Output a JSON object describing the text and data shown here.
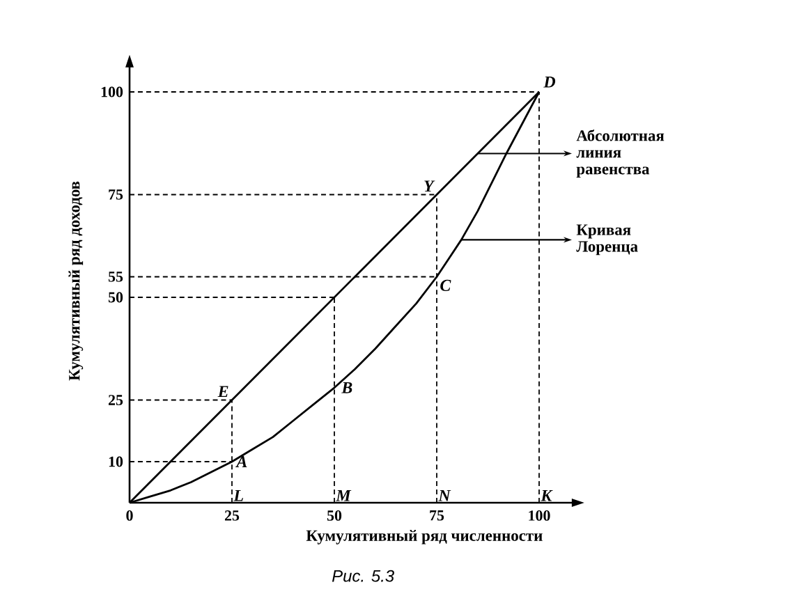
{
  "chart_data": {
    "type": "line",
    "xlabel": "Кумулятивный ряд численности",
    "ylabel": "Кумулятивный ряд доходов",
    "xlim": [
      0,
      110
    ],
    "ylim": [
      0,
      108
    ],
    "xticks": [
      {
        "value": 0,
        "label": "0"
      },
      25,
      50,
      75,
      100
    ],
    "yticks": [
      10,
      25,
      50,
      55,
      75,
      100
    ],
    "marker": "none",
    "series": [
      {
        "color": "#000000",
        "x": [
          0,
          100
        ],
        "values": [
          0,
          100
        ]
      },
      {
        "color": "#000000",
        "x": [
          0,
          5,
          10,
          15,
          20,
          25,
          30,
          35,
          40,
          45,
          50,
          55,
          60,
          65,
          70,
          75,
          78,
          81,
          85,
          88,
          92,
          96,
          100
        ],
        "values": [
          0,
          1.5,
          3,
          5,
          7.5,
          10,
          13,
          16,
          20,
          24,
          28,
          32.5,
          37.5,
          43,
          48.5,
          55,
          59.5,
          64,
          71,
          77,
          85,
          92.5,
          100
        ]
      },
      {
        "color": "#000000",
        "line_style": "dashed",
        "x": [
          0,
          25
        ],
        "values": [
          10,
          10
        ]
      },
      {
        "color": "#000000",
        "line_style": "dashed",
        "x": [
          0,
          25
        ],
        "values": [
          25,
          25
        ]
      },
      {
        "color": "#000000",
        "line_style": "dashed",
        "x": [
          0,
          50
        ],
        "values": [
          50,
          50
        ]
      },
      {
        "color": "#000000",
        "line_style": "dashed",
        "x": [
          0,
          75
        ],
        "values": [
          55,
          55
        ]
      },
      {
        "color": "#000000",
        "line_style": "dashed",
        "x": [
          0,
          75
        ],
        "values": [
          75,
          75
        ]
      },
      {
        "color": "#000000",
        "line_style": "dashed",
        "x": [
          0,
          100
        ],
        "values": [
          100,
          100
        ]
      },
      {
        "color": "#000000",
        "line_style": "dashed",
        "x": [
          25,
          25
        ],
        "values": [
          0,
          25
        ]
      },
      {
        "color": "#000000",
        "line_style": "dashed",
        "x": [
          50,
          50
        ],
        "values": [
          0,
          50
        ]
      },
      {
        "color": "#000000",
        "line_style": "dashed",
        "x": [
          75,
          75
        ],
        "values": [
          0,
          75
        ]
      },
      {
        "color": "#000000",
        "line_style": "dashed",
        "x": [
          100,
          100
        ],
        "values": [
          0,
          100
        ]
      }
    ],
    "annotations": [
      {
        "text": "E",
        "x": 25,
        "y": 25
      },
      {
        "text": "A",
        "x": 25,
        "y": 10
      },
      {
        "text": "L",
        "x": 25,
        "y": 0
      },
      {
        "text": "B",
        "x": 50,
        "y": 28
      },
      {
        "text": "M",
        "x": 50,
        "y": 0
      },
      {
        "text": "Y",
        "x": 75,
        "y": 75
      },
      {
        "text": "C",
        "x": 75,
        "y": 55
      },
      {
        "text": "N",
        "x": 75,
        "y": 0
      },
      {
        "text": "D",
        "x": 100,
        "y": 100
      },
      {
        "text": "K",
        "x": 100,
        "y": 0
      },
      {
        "text": "Абсолютная линия равенства",
        "x": 85,
        "y": 85
      },
      {
        "text": "Кривая Лоренца",
        "x": 81,
        "y": 64
      },
      "Рис. 5.3"
    ]
  }
}
